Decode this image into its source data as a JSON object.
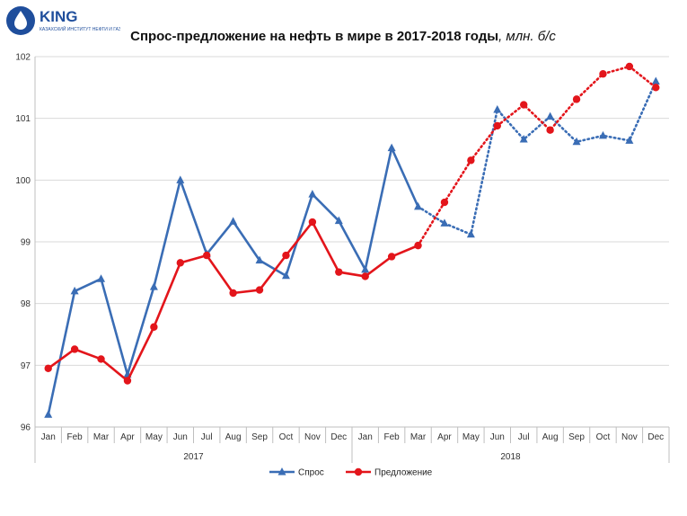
{
  "brand": {
    "name": "KING",
    "tagline": "КАЗАХСКИЙ ИНСТИТУТ НЕФТИ И ГАЗА",
    "color": "#1f4e9c"
  },
  "chart_data": {
    "type": "line",
    "title": "Спрос-предложение на нефть в мире в 2017-2018 годы",
    "title_unit": ", млн. б/с",
    "categories": [
      "Jan",
      "Feb",
      "Mar",
      "Apr",
      "May",
      "Jun",
      "Jul",
      "Aug",
      "Sep",
      "Oct",
      "Nov",
      "Dec",
      "Jan",
      "Feb",
      "Mar",
      "Apr",
      "May",
      "Jun",
      "Jul",
      "Aug",
      "Sep",
      "Oct",
      "Nov",
      "Dec"
    ],
    "groups": [
      {
        "label": "2017",
        "start": 0,
        "end": 11
      },
      {
        "label": "2018",
        "start": 12,
        "end": 23
      }
    ],
    "ylim": [
      96,
      102
    ],
    "yticks": [
      96,
      97,
      98,
      99,
      100,
      101,
      102
    ],
    "grid": true,
    "legend_position": "bottom",
    "forecast_start_index": 14,
    "series": [
      {
        "name": "Спрос",
        "color": "#3a6db5",
        "marker": "triangle",
        "values": [
          96.2,
          98.2,
          98.4,
          96.85,
          98.27,
          100.0,
          98.8,
          99.33,
          98.7,
          98.45,
          99.77,
          99.34,
          98.55,
          100.52,
          99.57,
          99.3,
          99.12,
          101.14,
          100.66,
          101.03,
          100.62,
          100.72,
          100.64,
          101.6
        ]
      },
      {
        "name": "Предложение",
        "color": "#e3151b",
        "marker": "circle",
        "values": [
          96.95,
          97.26,
          97.1,
          96.75,
          97.62,
          98.66,
          98.78,
          98.17,
          98.22,
          98.78,
          99.32,
          98.51,
          98.44,
          98.76,
          98.94,
          99.64,
          100.32,
          100.88,
          101.22,
          100.81,
          101.31,
          101.72,
          101.84,
          101.5
        ]
      }
    ]
  }
}
